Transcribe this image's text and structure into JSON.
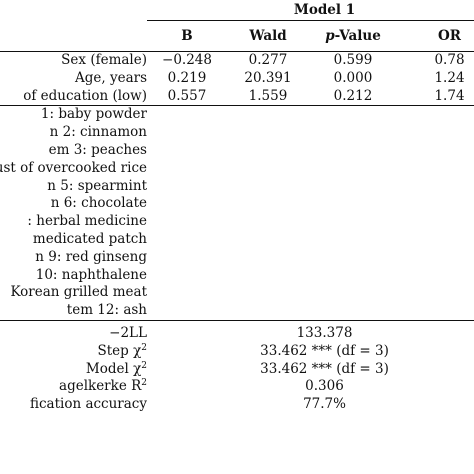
{
  "header": {
    "model": "Model 1",
    "cols": {
      "b": "B",
      "wald": "Wald",
      "p_italic": "p",
      "p_rest": "-Value",
      "or": "OR"
    }
  },
  "rows_top": [
    {
      "label": "Sex (female)",
      "b": "−0.248",
      "wald": "0.277",
      "p": "0.599",
      "or": "0.78"
    },
    {
      "label": "Age, years",
      "b": "0.219",
      "wald": "20.391",
      "p": "0.000",
      "or": "1.24"
    },
    {
      "label": "of education (low)",
      "b": "0.557",
      "wald": "1.559",
      "p": "0.212",
      "or": "1.74"
    }
  ],
  "items": [
    "1: baby powder",
    "n 2: cinnamon",
    "em 3: peaches",
    "ust of overcooked rice",
    "n 5: spearmint",
    "n 6: chocolate",
    ": herbal medicine",
    "medicated patch",
    "n 9: red ginseng",
    "10: naphthalene",
    "Korean grilled meat",
    "tem 12: ash"
  ],
  "stats": [
    {
      "label": "−2LL",
      "value": "133.378"
    },
    {
      "label_main": "Step χ",
      "label_sup": "2",
      "value": "33.462 *** (df = 3)"
    },
    {
      "label_main": "Model χ",
      "label_sup": "2",
      "value": "33.462 *** (df = 3)"
    },
    {
      "label_main": "agelkerke R",
      "label_sup": "2",
      "value": "0.306"
    },
    {
      "label": "fication accuracy",
      "value": "77.7%"
    }
  ]
}
